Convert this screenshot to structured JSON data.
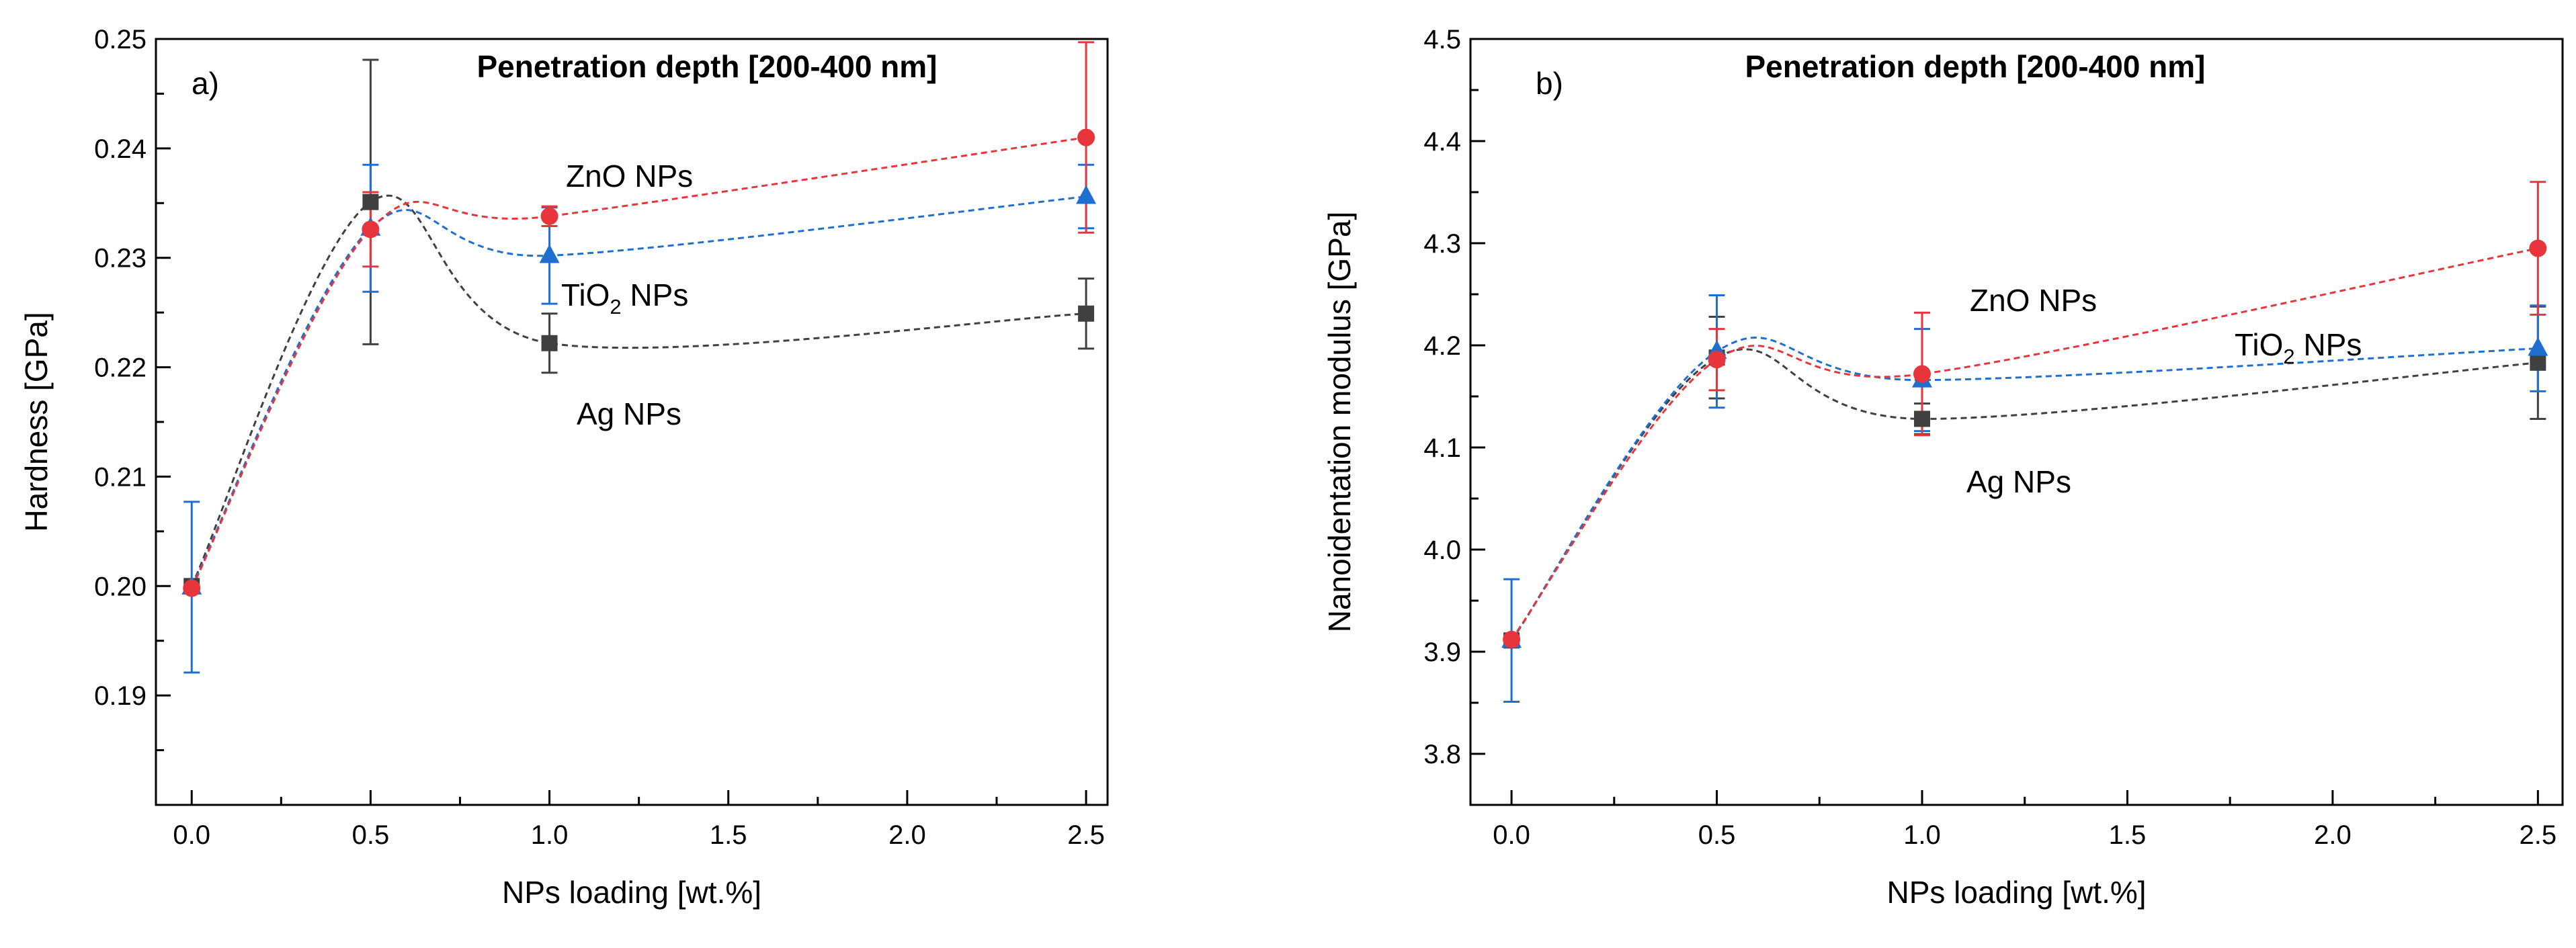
{
  "chart_data": [
    {
      "type": "line",
      "panel_letter": "a)",
      "title": "Penetration depth [200-400 nm]",
      "xlabel": "NPs loading [wt.%]",
      "ylabel": "Hardness [GPa]",
      "xlim": [
        -0.1,
        2.56
      ],
      "ylim": [
        0.18,
        0.25
      ],
      "xticks": [
        0.0,
        0.5,
        1.0,
        1.5,
        2.0,
        2.5
      ],
      "xtick_labels": [
        "0.0",
        "0.5",
        "1.0",
        "1.5",
        "2.0",
        "2.5"
      ],
      "yticks": [
        0.19,
        0.2,
        0.21,
        0.22,
        0.23,
        0.24,
        0.25
      ],
      "ytick_labels": [
        "0.19",
        "0.20",
        "0.21",
        "0.22",
        "0.23",
        "0.24",
        "0.25"
      ],
      "grid": false,
      "series": [
        {
          "name": "Ag NPs",
          "label_parts": [
            "Ag NPs"
          ],
          "color": "#404040",
          "marker": "square",
          "x": [
            0.0,
            0.5,
            1.0,
            2.5
          ],
          "y": [
            0.2,
            0.2351,
            0.2222,
            0.2249
          ],
          "error": [
            0.0,
            0.013,
            0.0027,
            0.0032
          ]
        },
        {
          "name": "TiO2 NPs",
          "label_parts": [
            "TiO",
            "2",
            " NPs"
          ],
          "color": "#1f6fd1",
          "marker": "triangle",
          "x": [
            0.0,
            0.5,
            1.0,
            2.5
          ],
          "y": [
            0.1999,
            0.2327,
            0.2302,
            0.2356
          ],
          "error": [
            0.0078,
            0.0058,
            0.0044,
            0.0029
          ]
        },
        {
          "name": "ZnO NPs",
          "label_parts": [
            "ZnO NPs"
          ],
          "color": "#e8353b",
          "marker": "circle",
          "x": [
            0.0,
            0.5,
            1.0,
            2.5
          ],
          "y": [
            0.1998,
            0.2326,
            0.2338,
            0.241
          ],
          "error": [
            0.0,
            0.0034,
            0.0009,
            0.0087
          ]
        }
      ]
    },
    {
      "type": "line",
      "panel_letter": "b)",
      "title": "Penetration depth [200-400 nm]",
      "xlabel": "NPs loading [wt.%]",
      "ylabel": "Nanoidentation modulus [GPa]",
      "xlim": [
        -0.1,
        2.56
      ],
      "ylim": [
        3.75,
        4.5
      ],
      "xticks": [
        0.0,
        0.5,
        1.0,
        1.5,
        2.0,
        2.5
      ],
      "xtick_labels": [
        "0.0",
        "0.5",
        "1.0",
        "1.5",
        "2.0",
        "2.5"
      ],
      "yticks": [
        3.8,
        3.9,
        4.0,
        4.1,
        4.2,
        4.3,
        4.4,
        4.5
      ],
      "ytick_labels": [
        "3.8",
        "3.9",
        "4.0",
        "4.1",
        "4.2",
        "4.3",
        "4.4",
        "4.5"
      ],
      "grid": false,
      "series": [
        {
          "name": "Ag NPs",
          "label_parts": [
            "Ag NPs"
          ],
          "color": "#404040",
          "marker": "square",
          "x": [
            0.0,
            0.5,
            1.0,
            2.5
          ],
          "y": [
            3.911,
            4.188,
            4.128,
            4.183
          ],
          "error": [
            0.0,
            0.04,
            0.015,
            0.055
          ]
        },
        {
          "name": "TiO2 NPs",
          "label_parts": [
            "TiO",
            "2",
            " NPs"
          ],
          "color": "#1f6fd1",
          "marker": "triangle",
          "x": [
            0.0,
            0.5,
            1.0,
            2.5
          ],
          "y": [
            3.911,
            4.194,
            4.166,
            4.197
          ],
          "error": [
            0.06,
            0.055,
            0.05,
            0.042
          ]
        },
        {
          "name": "ZnO NPs",
          "label_parts": [
            "ZnO NPs"
          ],
          "color": "#e8353b",
          "marker": "circle",
          "x": [
            0.0,
            0.5,
            1.0,
            2.5
          ],
          "y": [
            3.912,
            4.186,
            4.172,
            4.295
          ],
          "error": [
            0.0,
            0.03,
            0.06,
            0.065
          ]
        }
      ]
    }
  ]
}
